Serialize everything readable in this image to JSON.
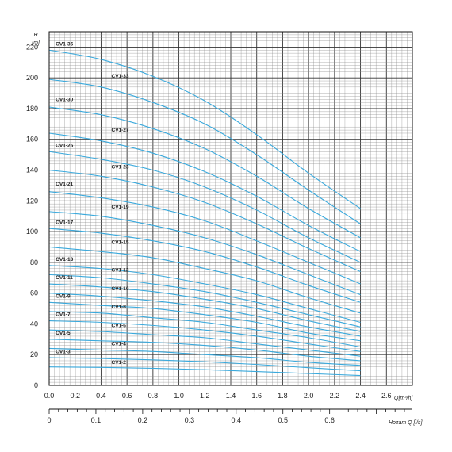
{
  "colors": {
    "curve": "#3aa9dc",
    "grid_major": "#333333",
    "grid_minor": "#8a8a8a",
    "axis": "#111111"
  },
  "chart_data": {
    "type": "line",
    "y_axis": {
      "label": "H",
      "unit": "[m]",
      "range": [
        0,
        230
      ],
      "ticks": [
        "0",
        "20",
        "40",
        "60",
        "80",
        "100",
        "120",
        "140",
        "160",
        "180",
        "200",
        "220"
      ]
    },
    "x_axis_top": {
      "label": "Q[m³/h]",
      "range": [
        0,
        2.8
      ],
      "ticks": [
        "0.0",
        "0.2",
        "0.4",
        "0.6",
        "0.8",
        "1.0",
        "1.2",
        "1.4",
        "1.6",
        "1.8",
        "2.0",
        "2.2",
        "2.4",
        "2.6"
      ]
    },
    "x_axis_bottom": {
      "label": "Hozam Q [l/s]",
      "range": [
        0,
        0.777
      ],
      "ticks": [
        "0",
        "0.1",
        "0.2",
        "0.3",
        "0.4",
        "0.5",
        "0.6"
      ]
    },
    "grid": true,
    "x": [
      0,
      0.4,
      0.8,
      1.2,
      1.6,
      2.0,
      2.4
    ],
    "series": [
      {
        "name": "CV1-36",
        "values": [
          218,
          212,
          201,
          185,
          163,
          138,
          115
        ]
      },
      {
        "name": "CV1-33",
        "values": [
          199,
          194,
          184,
          170,
          150,
          127,
          105
        ]
      },
      {
        "name": "CV1-30",
        "values": [
          181,
          176,
          167,
          154,
          136,
          115,
          96
        ]
      },
      {
        "name": "CV1-27",
        "values": [
          164,
          159,
          151,
          139,
          123,
          104,
          87
        ]
      },
      {
        "name": "CV1-25",
        "values": [
          152,
          147,
          140,
          129,
          114,
          96,
          80
        ]
      },
      {
        "name": "CV1-23",
        "values": [
          140,
          136,
          129,
          119,
          105,
          89,
          74
        ]
      },
      {
        "name": "CV1-21",
        "values": [
          126,
          122,
          116,
          107,
          94,
          80,
          66
        ]
      },
      {
        "name": "CV1-19",
        "values": [
          113,
          110,
          104,
          96,
          85,
          72,
          59
        ]
      },
      {
        "name": "CV1-17",
        "values": [
          102,
          99,
          94,
          87,
          77,
          65,
          54
        ]
      },
      {
        "name": "CV1-15",
        "values": [
          90,
          87,
          83,
          76,
          68,
          57,
          47
        ]
      },
      {
        "name": "CV1-13",
        "values": [
          78,
          76,
          72,
          66,
          59,
          50,
          41
        ]
      },
      {
        "name": "CV1-12",
        "values": [
          72,
          70,
          66,
          61,
          54,
          46,
          38
        ]
      },
      {
        "name": "CV1-11",
        "values": [
          66,
          64,
          61,
          56,
          50,
          42,
          35
        ]
      },
      {
        "name": "CV1-10",
        "values": [
          60,
          58,
          55,
          51,
          45,
          38,
          32
        ]
      },
      {
        "name": "CV1-9",
        "values": [
          54,
          52,
          50,
          46,
          41,
          34,
          29
        ]
      },
      {
        "name": "CV1-8",
        "values": [
          48,
          47,
          44,
          41,
          36,
          31,
          25
        ]
      },
      {
        "name": "CV1-7",
        "values": [
          42,
          41,
          39,
          36,
          32,
          27,
          22
        ]
      },
      {
        "name": "CV1-6",
        "values": [
          36,
          35,
          33,
          31,
          27,
          23,
          19
        ]
      },
      {
        "name": "CV1-5",
        "values": [
          30,
          29,
          28,
          26,
          23,
          19,
          16
        ]
      },
      {
        "name": "CV1-4",
        "values": [
          24,
          23,
          22,
          20,
          18,
          15,
          13
        ]
      },
      {
        "name": "CV1-3",
        "values": [
          18,
          17.5,
          16.6,
          15.4,
          13.6,
          11.5,
          9.5
        ]
      },
      {
        "name": "CV1-2",
        "values": [
          12,
          11.7,
          11.1,
          10.2,
          9,
          7.7,
          6.4
        ]
      }
    ],
    "labels": [
      {
        "text": "CV1-36",
        "x": 0.05,
        "y": 221,
        "anchor": "start"
      },
      {
        "text": "CV1-33",
        "x": 0.48,
        "y": 200,
        "anchor": "start"
      },
      {
        "text": "CV1-30",
        "x": 0.05,
        "y": 185,
        "anchor": "start"
      },
      {
        "text": "CV1-27",
        "x": 0.48,
        "y": 165,
        "anchor": "start"
      },
      {
        "text": "CV1-25",
        "x": 0.05,
        "y": 155,
        "anchor": "start"
      },
      {
        "text": "CV1-23",
        "x": 0.48,
        "y": 141,
        "anchor": "start"
      },
      {
        "text": "CV1-21",
        "x": 0.05,
        "y": 130,
        "anchor": "start"
      },
      {
        "text": "CV1-19",
        "x": 0.48,
        "y": 115,
        "anchor": "start"
      },
      {
        "text": "CV1-17",
        "x": 0.05,
        "y": 105,
        "anchor": "start"
      },
      {
        "text": "CV1-15",
        "x": 0.48,
        "y": 92,
        "anchor": "start"
      },
      {
        "text": "CV1-13",
        "x": 0.05,
        "y": 81,
        "anchor": "start"
      },
      {
        "text": "CV1-12",
        "x": 0.48,
        "y": 74,
        "anchor": "start"
      },
      {
        "text": "CV1-11",
        "x": 0.05,
        "y": 69,
        "anchor": "start"
      },
      {
        "text": "CV1-10",
        "x": 0.48,
        "y": 62,
        "anchor": "start"
      },
      {
        "text": "CV1-9",
        "x": 0.05,
        "y": 57,
        "anchor": "start"
      },
      {
        "text": "CV1-8",
        "x": 0.48,
        "y": 50,
        "anchor": "start"
      },
      {
        "text": "CV1-7",
        "x": 0.05,
        "y": 45,
        "anchor": "start"
      },
      {
        "text": "CV1-6",
        "x": 0.48,
        "y": 38,
        "anchor": "start"
      },
      {
        "text": "CV1-5",
        "x": 0.05,
        "y": 33,
        "anchor": "start"
      },
      {
        "text": "CV1-4",
        "x": 0.48,
        "y": 26,
        "anchor": "start"
      },
      {
        "text": "CV1-3",
        "x": 0.05,
        "y": 21,
        "anchor": "start"
      },
      {
        "text": "CV1-2",
        "x": 0.48,
        "y": 14,
        "anchor": "start"
      }
    ]
  }
}
